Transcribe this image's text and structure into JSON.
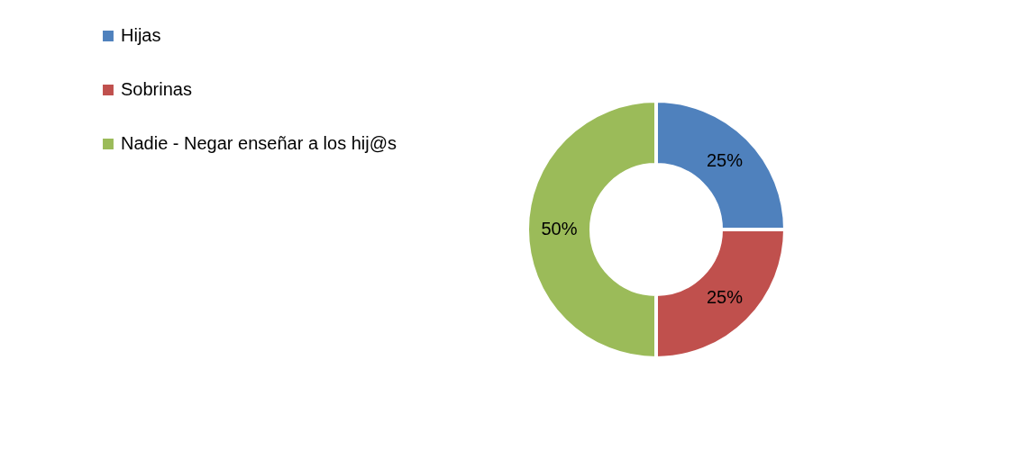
{
  "chart_data": {
    "type": "donut",
    "categories": [
      "Hijas",
      "Sobrinas",
      "Nadie - Negar enseñar a los hij@s"
    ],
    "values": [
      25,
      25,
      50
    ],
    "colors": [
      "#4f81bd",
      "#c0504d",
      "#9bbb59"
    ],
    "value_labels": [
      "25%",
      "25%",
      "50%"
    ],
    "legend": "left"
  }
}
